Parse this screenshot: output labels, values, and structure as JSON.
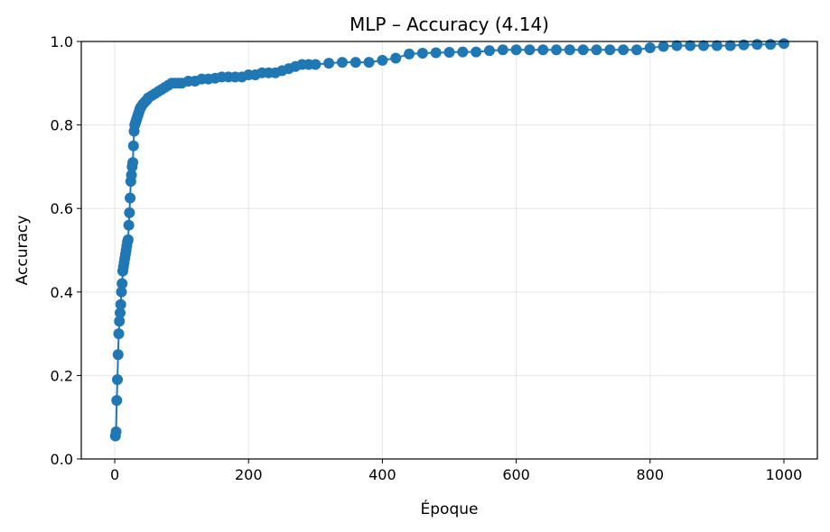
{
  "chart_data": {
    "type": "line",
    "title": "MLP – Accuracy (4.14)",
    "xlabel": "Époque",
    "ylabel": "Accuracy",
    "xlim": [
      -50,
      1050
    ],
    "ylim": [
      0,
      1
    ],
    "x_ticks": [
      0,
      200,
      400,
      600,
      800,
      1000
    ],
    "x_tick_labels": [
      "0",
      "200",
      "400",
      "600",
      "800",
      "1000"
    ],
    "y_ticks": [
      0,
      0.2,
      0.4,
      0.6,
      0.8,
      1.0
    ],
    "y_tick_labels": [
      "0.0",
      "0.2",
      "0.4",
      "0.6",
      "0.8",
      "1.0"
    ],
    "grid": true,
    "marker": "circle",
    "color": "#1f77b4",
    "series": [
      {
        "x": [
          1,
          2,
          3,
          4,
          5,
          6,
          7,
          8,
          9,
          10,
          11,
          12,
          13,
          14,
          15,
          16,
          17,
          18,
          19,
          20,
          21,
          22,
          23,
          24,
          25,
          26,
          27,
          28,
          29,
          30,
          31,
          32,
          33,
          34,
          35,
          36,
          37,
          38,
          39,
          40,
          42,
          45,
          48,
          50,
          55,
          60,
          65,
          70,
          75,
          80,
          85,
          90,
          95,
          100,
          110,
          120,
          130,
          140,
          150,
          160,
          170,
          180,
          190,
          200,
          210,
          220,
          230,
          240,
          250,
          260,
          270,
          280,
          290,
          300,
          320,
          340,
          360,
          380,
          400,
          420,
          440,
          460,
          480,
          500,
          520,
          540,
          560,
          580,
          600,
          620,
          640,
          660,
          680,
          700,
          720,
          740,
          760,
          780,
          800,
          820,
          840,
          860,
          880,
          900,
          920,
          940,
          960,
          980,
          1000
        ],
        "y": [
          0.055,
          0.065,
          0.14,
          0.19,
          0.25,
          0.3,
          0.33,
          0.35,
          0.37,
          0.4,
          0.42,
          0.45,
          0.46,
          0.47,
          0.48,
          0.49,
          0.5,
          0.51,
          0.52,
          0.525,
          0.56,
          0.59,
          0.625,
          0.665,
          0.68,
          0.7,
          0.71,
          0.75,
          0.785,
          0.8,
          0.805,
          0.81,
          0.815,
          0.82,
          0.825,
          0.83,
          0.835,
          0.84,
          0.842,
          0.845,
          0.85,
          0.855,
          0.86,
          0.865,
          0.87,
          0.875,
          0.88,
          0.885,
          0.89,
          0.895,
          0.9,
          0.9,
          0.9,
          0.9,
          0.905,
          0.905,
          0.91,
          0.91,
          0.912,
          0.915,
          0.915,
          0.915,
          0.915,
          0.92,
          0.92,
          0.925,
          0.925,
          0.925,
          0.93,
          0.935,
          0.94,
          0.945,
          0.945,
          0.945,
          0.948,
          0.95,
          0.95,
          0.95,
          0.955,
          0.96,
          0.97,
          0.972,
          0.973,
          0.974,
          0.975,
          0.975,
          0.978,
          0.98,
          0.98,
          0.98,
          0.98,
          0.98,
          0.98,
          0.98,
          0.98,
          0.98,
          0.98,
          0.98,
          0.985,
          0.988,
          0.99,
          0.99,
          0.99,
          0.99,
          0.99,
          0.992,
          0.993,
          0.993,
          0.995
        ]
      }
    ]
  }
}
